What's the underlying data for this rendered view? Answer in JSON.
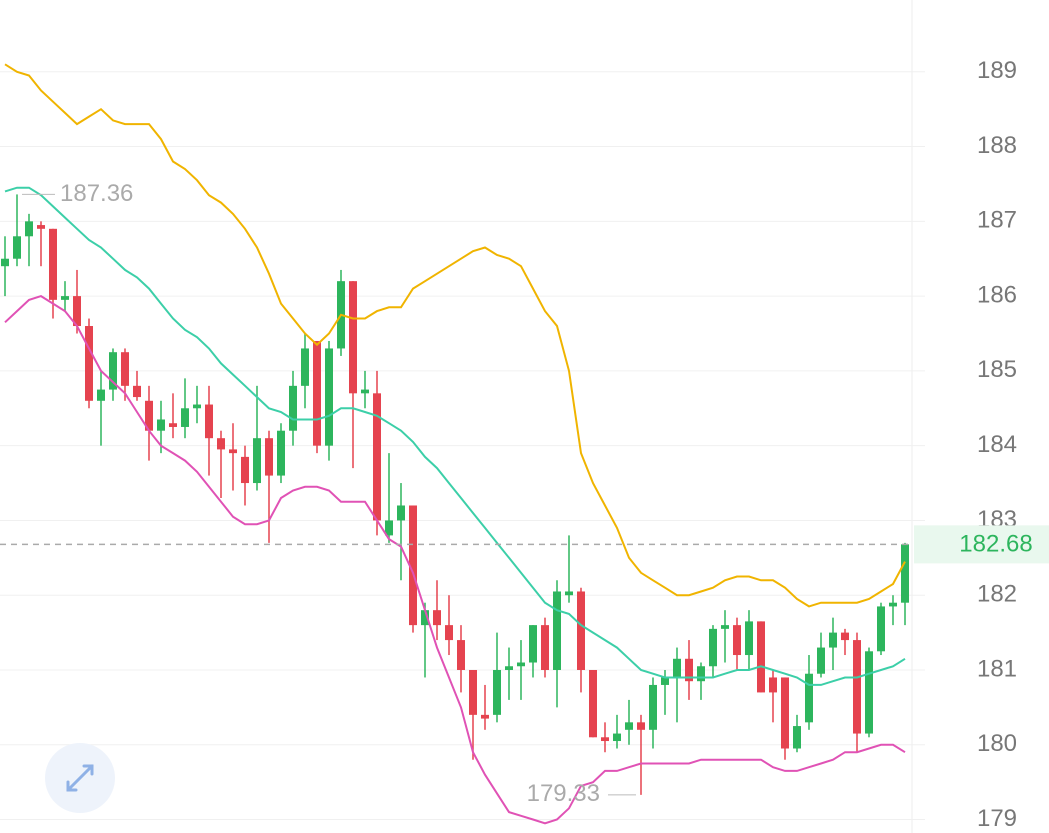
{
  "chart_data": {
    "type": "candlestick",
    "up_color": "#2db55d",
    "down_color": "#e5434f",
    "open": [
      186.4,
      186.5,
      186.8,
      186.95,
      186.9,
      185.95,
      186.0,
      185.6,
      184.6,
      184.75,
      185.25,
      184.8,
      184.6,
      184.2,
      184.3,
      184.25,
      184.5,
      184.55,
      184.1,
      183.95,
      183.85,
      183.5,
      184.1,
      183.6,
      184.2,
      184.8,
      185.4,
      184.0,
      185.3,
      186.2,
      184.7,
      184.7,
      182.8,
      183.0,
      183.2,
      181.6,
      181.8,
      181.6,
      181.4,
      181.0,
      180.4,
      180.4,
      181.0,
      181.05,
      181.1,
      181.6,
      181.0,
      182.0,
      182.05,
      181.0,
      180.1,
      180.05,
      180.2,
      180.3,
      180.2,
      180.8,
      180.9,
      181.15,
      180.85,
      181.05,
      181.55,
      181.6,
      181.2,
      181.65,
      180.9,
      180.9,
      179.95,
      180.3,
      180.95,
      181.3,
      181.5,
      181.4,
      180.15,
      181.25,
      181.85,
      181.9
    ],
    "high": [
      186.8,
      187.36,
      187.1,
      187.0,
      186.9,
      186.2,
      186.35,
      185.7,
      185.0,
      185.3,
      185.3,
      185.0,
      184.8,
      184.6,
      184.7,
      184.9,
      184.8,
      184.8,
      184.2,
      184.3,
      184.0,
      184.8,
      184.2,
      184.3,
      185.0,
      185.5,
      185.4,
      185.4,
      186.35,
      186.2,
      185.0,
      185.0,
      183.9,
      183.5,
      183.2,
      181.9,
      182.2,
      182.0,
      181.6,
      181.0,
      180.8,
      181.5,
      181.3,
      181.4,
      181.6,
      181.7,
      182.2,
      182.8,
      182.1,
      181.0,
      180.3,
      180.4,
      180.6,
      180.4,
      180.9,
      181.0,
      181.3,
      181.4,
      181.1,
      181.6,
      181.8,
      181.7,
      181.8,
      181.65,
      181.0,
      180.9,
      180.4,
      181.2,
      181.5,
      181.7,
      181.55,
      181.5,
      181.3,
      181.9,
      182.0,
      182.7
    ],
    "low": [
      186.0,
      186.4,
      186.4,
      186.4,
      185.7,
      185.8,
      185.5,
      184.5,
      184.0,
      184.6,
      184.6,
      184.6,
      183.8,
      183.9,
      184.1,
      184.1,
      184.3,
      183.6,
      183.3,
      183.4,
      183.2,
      183.4,
      182.7,
      183.5,
      184.0,
      184.5,
      183.9,
      183.8,
      185.2,
      183.7,
      184.5,
      182.8,
      182.7,
      182.2,
      181.5,
      180.9,
      181.4,
      181.2,
      180.7,
      179.8,
      180.2,
      180.3,
      180.6,
      180.6,
      180.9,
      180.9,
      180.5,
      181.9,
      180.7,
      180.1,
      179.9,
      179.95,
      180.0,
      179.33,
      179.95,
      180.4,
      180.3,
      180.6,
      180.6,
      180.9,
      181.1,
      181.0,
      181.0,
      180.7,
      180.3,
      179.8,
      179.9,
      180.2,
      180.9,
      181.0,
      181.2,
      179.9,
      180.1,
      181.2,
      181.6,
      181.6
    ],
    "close": [
      186.5,
      186.8,
      187.0,
      186.9,
      185.95,
      186.0,
      185.6,
      184.6,
      184.75,
      185.25,
      184.8,
      184.65,
      184.2,
      184.35,
      184.25,
      184.5,
      184.55,
      184.1,
      183.95,
      183.9,
      183.5,
      184.1,
      183.6,
      184.2,
      184.8,
      185.3,
      184.0,
      185.3,
      186.2,
      184.7,
      184.75,
      183.0,
      183.0,
      183.2,
      181.6,
      181.8,
      181.6,
      181.4,
      181.0,
      180.4,
      180.35,
      181.0,
      181.05,
      181.1,
      181.6,
      181.0,
      182.05,
      182.05,
      181.0,
      180.1,
      180.05,
      180.15,
      180.3,
      180.2,
      180.8,
      180.9,
      181.15,
      180.85,
      181.05,
      181.55,
      181.6,
      181.2,
      181.65,
      180.7,
      180.7,
      179.95,
      180.25,
      180.95,
      181.3,
      181.5,
      181.4,
      180.15,
      181.25,
      181.85,
      181.9,
      182.68
    ],
    "series": [
      {
        "color": "#f0b400",
        "values": [
          189.1,
          189.0,
          188.95,
          188.75,
          188.6,
          188.45,
          188.3,
          188.4,
          188.5,
          188.35,
          188.3,
          188.3,
          188.3,
          188.1,
          187.8,
          187.7,
          187.55,
          187.35,
          187.25,
          187.1,
          186.9,
          186.65,
          186.3,
          185.9,
          185.7,
          185.5,
          185.35,
          185.5,
          185.75,
          185.7,
          185.7,
          185.8,
          185.85,
          185.85,
          186.1,
          186.2,
          186.3,
          186.4,
          186.5,
          186.6,
          186.65,
          186.55,
          186.5,
          186.4,
          186.1,
          185.8,
          185.6,
          185.0,
          183.9,
          183.5,
          183.2,
          182.9,
          182.5,
          182.3,
          182.2,
          182.1,
          182.0,
          182.0,
          182.05,
          182.1,
          182.2,
          182.25,
          182.25,
          182.2,
          182.2,
          182.1,
          181.95,
          181.85,
          181.9,
          181.9,
          181.9,
          181.9,
          181.95,
          182.05,
          182.15,
          182.45
        ]
      },
      {
        "color": "#3ccfa8",
        "values": [
          187.4,
          187.45,
          187.45,
          187.35,
          187.2,
          187.05,
          186.9,
          186.75,
          186.65,
          186.5,
          186.35,
          186.25,
          186.1,
          185.9,
          185.7,
          185.55,
          185.45,
          185.3,
          185.1,
          184.95,
          184.8,
          184.65,
          184.5,
          184.45,
          184.35,
          184.35,
          184.35,
          184.4,
          184.5,
          184.5,
          184.45,
          184.4,
          184.3,
          184.2,
          184.05,
          183.85,
          183.7,
          183.5,
          183.3,
          183.1,
          182.9,
          182.7,
          182.5,
          182.3,
          182.1,
          181.9,
          181.8,
          181.75,
          181.6,
          181.5,
          181.4,
          181.3,
          181.15,
          181.0,
          180.95,
          180.9,
          180.9,
          180.9,
          180.9,
          180.9,
          180.95,
          181.0,
          181.0,
          181.05,
          181.0,
          180.95,
          180.9,
          180.8,
          180.8,
          180.85,
          180.9,
          180.9,
          180.95,
          181.0,
          181.05,
          181.15
        ]
      },
      {
        "color": "#e052b5",
        "values": [
          185.65,
          185.8,
          185.95,
          186.0,
          185.9,
          185.8,
          185.6,
          185.3,
          185.0,
          184.85,
          184.7,
          184.45,
          184.2,
          184.0,
          183.9,
          183.8,
          183.65,
          183.45,
          183.25,
          183.05,
          182.95,
          182.95,
          183.0,
          183.3,
          183.4,
          183.45,
          183.45,
          183.4,
          183.25,
          183.25,
          183.25,
          183.0,
          182.75,
          182.65,
          182.3,
          181.8,
          181.3,
          180.9,
          180.5,
          179.9,
          179.6,
          179.35,
          179.1,
          179.05,
          179.0,
          178.95,
          179.0,
          179.15,
          179.45,
          179.5,
          179.65,
          179.65,
          179.7,
          179.75,
          179.75,
          179.75,
          179.75,
          179.75,
          179.8,
          179.8,
          179.8,
          179.8,
          179.8,
          179.8,
          179.7,
          179.65,
          179.65,
          179.7,
          179.75,
          179.8,
          179.9,
          179.9,
          179.95,
          180.0,
          180.0,
          179.9
        ]
      }
    ],
    "annotations": {
      "max": 187.36,
      "min": 179.33,
      "last": 182.68
    },
    "ylim": [
      178.82,
      189.96
    ],
    "yticks": [
      179,
      180,
      181,
      182,
      183,
      184,
      185,
      186,
      187,
      188,
      189
    ],
    "grid": true
  }
}
